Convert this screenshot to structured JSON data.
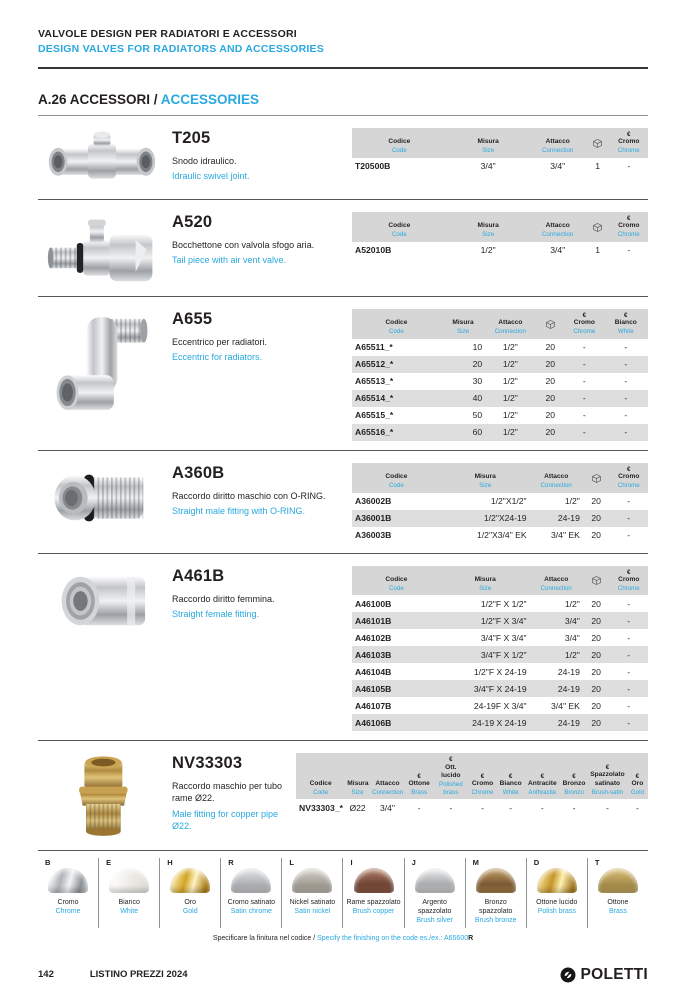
{
  "accent_color": "#29a9e0",
  "header": {
    "title_it": "VALVOLE DESIGN PER RADIATORI E ACCESSORI",
    "title_en": "DESIGN VALVES FOR RADIATORS AND ACCESSORIES"
  },
  "section": {
    "number_and_it": "A.26 ACCESSORI / ",
    "en": "ACCESSORIES"
  },
  "products": [
    {
      "id": "T205",
      "title": "T205",
      "desc_it": "Snodo idraulico.",
      "desc_en": "Idraulic swivel joint.",
      "photo": "t-joint",
      "layout": "t205",
      "headers": [
        {
          "it": "Codice",
          "en": "Code"
        },
        {
          "it": "Misura",
          "en": "Size"
        },
        {
          "it": "Attacco",
          "en": "Connection"
        },
        {
          "icon": "cube"
        },
        {
          "sym": "€",
          "it": "Cromo",
          "en": "Chrome"
        }
      ],
      "rows": [
        [
          "T20500B",
          "3/4\"",
          "3/4\"",
          "1",
          "-"
        ]
      ]
    },
    {
      "id": "A520",
      "title": "A520",
      "desc_it": "Bocchettone con valvola sfogo aria.",
      "desc_en": "Tail piece with air vent valve.",
      "photo": "a520",
      "layout": "t205",
      "headers": [
        {
          "it": "Codice",
          "en": "Code"
        },
        {
          "it": "Misura",
          "en": "Size"
        },
        {
          "it": "Attacco",
          "en": "Connection"
        },
        {
          "icon": "cube"
        },
        {
          "sym": "€",
          "it": "Cromo",
          "en": "Chrome"
        }
      ],
      "rows": [
        [
          "A52010B",
          "1/2\"",
          "3/4\"",
          "1",
          "-"
        ]
      ]
    },
    {
      "id": "A655",
      "title": "A655",
      "desc_it": "Eccentrico per radiatori.",
      "desc_en": "Eccentric for radiators.",
      "photo": "a655",
      "layout": "a655",
      "headers": [
        {
          "it": "Codice",
          "en": "Code"
        },
        {
          "it": "Misura",
          "en": "Size"
        },
        {
          "it": "Attacco",
          "en": "Connection"
        },
        {
          "icon": "cube"
        },
        {
          "sym": "€",
          "it": "Cromo",
          "en": "Chrome"
        },
        {
          "sym": "€",
          "it": "Bianco",
          "en": "White"
        }
      ],
      "rows": [
        [
          "A65511_*",
          "10",
          "1/2\"",
          "20",
          "-",
          "-"
        ],
        [
          "A65512_*",
          "20",
          "1/2\"",
          "20",
          "-",
          "-"
        ],
        [
          "A65513_*",
          "30",
          "1/2\"",
          "20",
          "-",
          "-"
        ],
        [
          "A65514_*",
          "40",
          "1/2\"",
          "20",
          "-",
          "-"
        ],
        [
          "A65515_*",
          "50",
          "1/2\"",
          "20",
          "-",
          "-"
        ],
        [
          "A65516_*",
          "60",
          "1/2\"",
          "20",
          "-",
          "-"
        ]
      ]
    },
    {
      "id": "A360B",
      "title": "A360B",
      "desc_it": "Raccordo diritto maschio con O-RING.",
      "desc_en": "Straight male fitting with O-RING.",
      "photo": "a360b",
      "layout": "a360",
      "headers": [
        {
          "it": "Codice",
          "en": "Code"
        },
        {
          "it": "Misura",
          "en": "Size"
        },
        {
          "it": "Attacco",
          "en": "Connection"
        },
        {
          "icon": "cube"
        },
        {
          "sym": "€",
          "it": "Cromo",
          "en": "Chrome"
        }
      ],
      "rows": [
        [
          "A36002B",
          "1/2\"X1/2\"",
          "1/2\"",
          "20",
          "-"
        ],
        [
          "A36001B",
          "1/2\"X24-19",
          "24-19",
          "20",
          "-"
        ],
        [
          "A36003B",
          "1/2\"X3/4\" EK",
          "3/4\" EK",
          "20",
          "-"
        ]
      ]
    },
    {
      "id": "A461B",
      "title": "A461B",
      "desc_it": "Raccordo diritto femmina.",
      "desc_en": "Straight female fitting.",
      "photo": "a461b",
      "layout": "a360",
      "headers": [
        {
          "it": "Codice",
          "en": "Code"
        },
        {
          "it": "Misura",
          "en": "Size"
        },
        {
          "it": "Attacco",
          "en": "Connection"
        },
        {
          "icon": "cube"
        },
        {
          "sym": "€",
          "it": "Cromo",
          "en": "Chrome"
        }
      ],
      "rows": [
        [
          "A46100B",
          "1/2\"F X 1/2\"",
          "1/2\"",
          "20",
          "-"
        ],
        [
          "A46101B",
          "1/2\"F X 3/4\"",
          "3/4\"",
          "20",
          "-"
        ],
        [
          "A46102B",
          "3/4\"F X 3/4\"",
          "3/4\"",
          "20",
          "-"
        ],
        [
          "A46103B",
          "3/4\"F X 1/2\"",
          "1/2\"",
          "20",
          "-"
        ],
        [
          "A46104B",
          "1/2\"F X 24-19",
          "24-19",
          "20",
          "-"
        ],
        [
          "A46105B",
          "3/4\"F X 24-19",
          "24-19",
          "20",
          "-"
        ],
        [
          "A46107B",
          "24-19F X 3/4\"",
          "3/4\" EK",
          "20",
          "-"
        ],
        [
          "A46106B",
          "24-19 X 24-19",
          "24-19",
          "20",
          "-"
        ]
      ]
    },
    {
      "id": "NV33303",
      "title": "NV33303",
      "desc_it": "Raccordo maschio per tubo rame Ø22.",
      "desc_en": "Male fitting for copper pipe Ø22.",
      "photo": "nv33303",
      "layout": "nv",
      "headers": [
        {
          "it": "Codice",
          "en": "Code"
        },
        {
          "it": "Misura",
          "en": "Size"
        },
        {
          "it": "Attacco",
          "en": "Connection"
        },
        {
          "sym": "€",
          "it": "Ottone",
          "en": "Brass"
        },
        {
          "sym": "€",
          "it": "Ott. lucido",
          "en": "Polished brass"
        },
        {
          "sym": "€",
          "it": "Cromo",
          "en": "Chrome"
        },
        {
          "sym": "€",
          "it": "Bianco",
          "en": "White"
        },
        {
          "sym": "€",
          "it": "Antracite",
          "en": "Anthracite"
        },
        {
          "sym": "€",
          "it": "Bronzo",
          "en": "Bronzo"
        },
        {
          "sym": "€",
          "it": "Spazzolato satinato",
          "en": "Brush-satin"
        },
        {
          "sym": "€",
          "it": "Oro",
          "en": "Gold"
        }
      ],
      "rows": [
        [
          "NV33303_*",
          "Ø22",
          "3/4\"",
          "-",
          "-",
          "-",
          "-",
          "-",
          "-",
          "-",
          "-"
        ]
      ]
    }
  ],
  "finishes": {
    "items": [
      {
        "letter": "B",
        "it": "Cromo",
        "en": "Chrome",
        "color": "chrome"
      },
      {
        "letter": "E",
        "it": "Bianco",
        "en": "White",
        "color": "white"
      },
      {
        "letter": "H",
        "it": "Oro",
        "en": "Gold",
        "color": "gold"
      },
      {
        "letter": "R",
        "it": "Cromo satinato",
        "en": "Satin chrome",
        "color": "satin-chrome"
      },
      {
        "letter": "L",
        "it": "Nickel satinato",
        "en": "Satin nickel",
        "color": "satin-nickel"
      },
      {
        "letter": "I",
        "it": "Rame spazzolato",
        "en": "Brush copper",
        "color": "brush-copper"
      },
      {
        "letter": "J",
        "it": "Argento spazzolato",
        "en": "Brush silver",
        "color": "brush-silver"
      },
      {
        "letter": "M",
        "it": "Bronzo spazzolato",
        "en": "Brush bronze",
        "color": "brush-bronze"
      },
      {
        "letter": "D",
        "it": "Ottone lucido",
        "en": "Polish brass",
        "color": "polish-brass"
      },
      {
        "letter": "T",
        "it": "Ottone",
        "en": "Brass",
        "color": "brass"
      }
    ],
    "note_it": "Specificare la finitura nel codice / ",
    "note_en": "Specify the finishing on the code es./ex.: A65600",
    "note_code_suffix": "R"
  },
  "footer": {
    "page_number": "142",
    "label": "LISTINO PREZZI 2024",
    "brand": "POLETTI"
  }
}
